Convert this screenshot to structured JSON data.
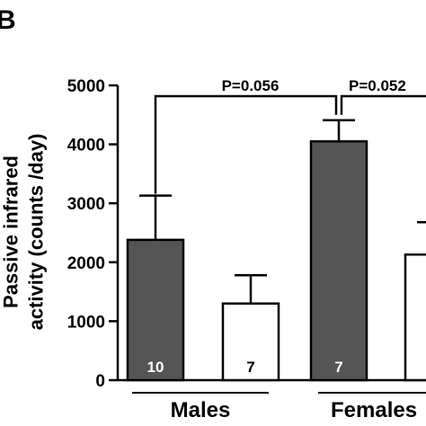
{
  "panel_label": "B",
  "chart_data": {
    "type": "bar",
    "title": "",
    "ylabel_lines": [
      "Passive infrared",
      "activity (counts /day)"
    ],
    "ylim": [
      0,
      5000
    ],
    "yticks": [
      0,
      1000,
      2000,
      3000,
      4000,
      5000
    ],
    "groups": [
      "Males",
      "Females"
    ],
    "bars": [
      {
        "group": "Males",
        "value": 2380,
        "error": 750,
        "n": "10",
        "color": "#555555",
        "n_color": "#ffffff"
      },
      {
        "group": "Males",
        "value": 1300,
        "error": 480,
        "n": "7",
        "color": "#ffffff",
        "n_color": "#000000"
      },
      {
        "group": "Females",
        "value": 4050,
        "error": 360,
        "n": "7",
        "color": "#555555",
        "n_color": "#ffffff"
      },
      {
        "group": "Females",
        "value": 2130,
        "error": 550,
        "n": "",
        "color": "#ffffff",
        "n_color": "#000000"
      }
    ],
    "annotations": [
      {
        "text": "P=0.056",
        "from_bar": 0,
        "to_bar": 2
      },
      {
        "text": "P=0.052",
        "from_bar": 2,
        "to_bar": 3
      }
    ],
    "grid": false,
    "legend": "none"
  }
}
